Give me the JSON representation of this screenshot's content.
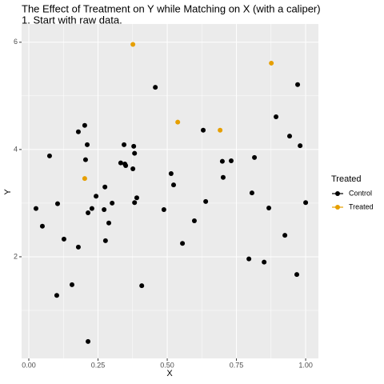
{
  "chart_data": {
    "type": "scatter",
    "title": "The Effect of Treatment on Y while Matching on X (with a caliper)",
    "subtitle": "1. Start with raw data.",
    "x_label": "X",
    "y_label": "Y",
    "legend_title": "Treated",
    "legend_position": "right",
    "grid": true,
    "minor_grid": true,
    "panel_color": "#ebebeb",
    "xlim": [
      -0.026,
      1.046
    ],
    "ylim": [
      0.105,
      6.34
    ],
    "xticks": [
      {
        "value": 0,
        "label": "0.00"
      },
      {
        "value": 0.25,
        "label": "0.25"
      },
      {
        "value": 0.5,
        "label": "0.50"
      },
      {
        "value": 0.75,
        "label": "0.75"
      },
      {
        "value": 1,
        "label": "1.00"
      }
    ],
    "yticks": [
      2,
      4,
      6
    ],
    "series": [
      {
        "name": "Control",
        "color": "#000000",
        "x": [
          0.026,
          0.049,
          0.075,
          0.104,
          0.101,
          0.127,
          0.156,
          0.179,
          0.179,
          0.202,
          0.205,
          0.211,
          0.214,
          0.228,
          0.243,
          0.214,
          0.272,
          0.275,
          0.277,
          0.289,
          0.301,
          0.332,
          0.344,
          0.347,
          0.35,
          0.376,
          0.379,
          0.382,
          0.382,
          0.39,
          0.408,
          0.457,
          0.488,
          0.514,
          0.523,
          0.555,
          0.598,
          0.63,
          0.639,
          0.699,
          0.702,
          0.731,
          0.795,
          0.806,
          0.815,
          0.85,
          0.867,
          0.893,
          0.925,
          0.942,
          0.971,
          0.968,
          0.98,
          1.0
        ],
        "values": [
          2.9,
          2.57,
          3.88,
          2.99,
          1.28,
          2.33,
          1.48,
          2.18,
          4.33,
          4.45,
          3.81,
          4.09,
          2.82,
          2.9,
          3.13,
          0.42,
          2.88,
          3.3,
          2.3,
          2.63,
          3.0,
          3.75,
          4.09,
          3.73,
          3.7,
          3.64,
          4.06,
          3.93,
          3.01,
          3.1,
          1.46,
          5.16,
          2.88,
          3.55,
          3.34,
          2.25,
          2.67,
          4.36,
          3.03,
          3.78,
          3.48,
          3.79,
          1.96,
          3.19,
          3.85,
          1.9,
          2.91,
          4.61,
          2.4,
          4.25,
          5.21,
          1.67,
          4.07,
          3.01
        ]
      },
      {
        "name": "Treated",
        "color": "#e69f00",
        "x": [
          0.376,
          0.202,
          0.538,
          0.691,
          0.876
        ],
        "values": [
          5.96,
          3.46,
          4.51,
          4.36,
          5.61
        ]
      }
    ]
  }
}
